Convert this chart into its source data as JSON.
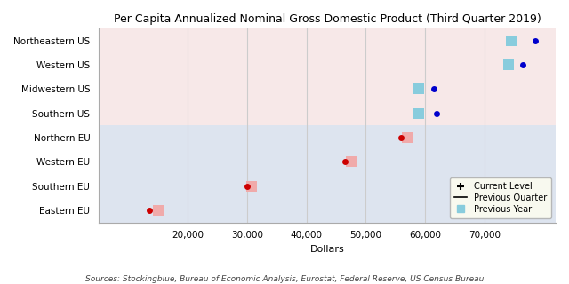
{
  "title": "Per Capita Annualized Nominal Gross Domestic Product (Third Quarter 2019)",
  "xlabel": "Dollars",
  "source": "Sources: Stockingblue, Bureau of Economic Analysis, Eurostat, Federal Reserve, US Census Bureau",
  "categories": [
    "Northeastern US",
    "Western US",
    "Midwestern US",
    "Southern US",
    "Northern EU",
    "Western EU",
    "Southern EU",
    "Eastern EU"
  ],
  "current_level": [
    78500,
    76500,
    61500,
    62000,
    56000,
    46500,
    30000,
    13500
  ],
  "previous_year": [
    74500,
    74000,
    59000,
    59000,
    57000,
    47500,
    30800,
    15000
  ],
  "us_regions": [
    "Northeastern US",
    "Western US",
    "Midwestern US",
    "Southern US"
  ],
  "eu_regions": [
    "Northern EU",
    "Western EU",
    "Southern EU",
    "Eastern EU"
  ],
  "bg_us": "#f7e8e8",
  "bg_eu": "#dde4ef",
  "dot_color_us_current": "#0000cc",
  "dot_color_eu_current": "#cc0000",
  "dot_color_us_prev_year": "#88ccdd",
  "dot_color_eu_prev_year": "#f0aaaa",
  "legend_bg": "#fffff0",
  "grid_color": "#cccccc",
  "xlim": [
    5000,
    82000
  ],
  "ylim": [
    -0.5,
    7.5
  ],
  "xticks": [
    20000,
    30000,
    40000,
    50000,
    60000,
    70000
  ],
  "figsize": [
    6.4,
    3.2
  ],
  "dpi": 100,
  "title_fontsize": 9,
  "tick_fontsize": 7.5,
  "xlabel_fontsize": 8,
  "source_fontsize": 6.5
}
